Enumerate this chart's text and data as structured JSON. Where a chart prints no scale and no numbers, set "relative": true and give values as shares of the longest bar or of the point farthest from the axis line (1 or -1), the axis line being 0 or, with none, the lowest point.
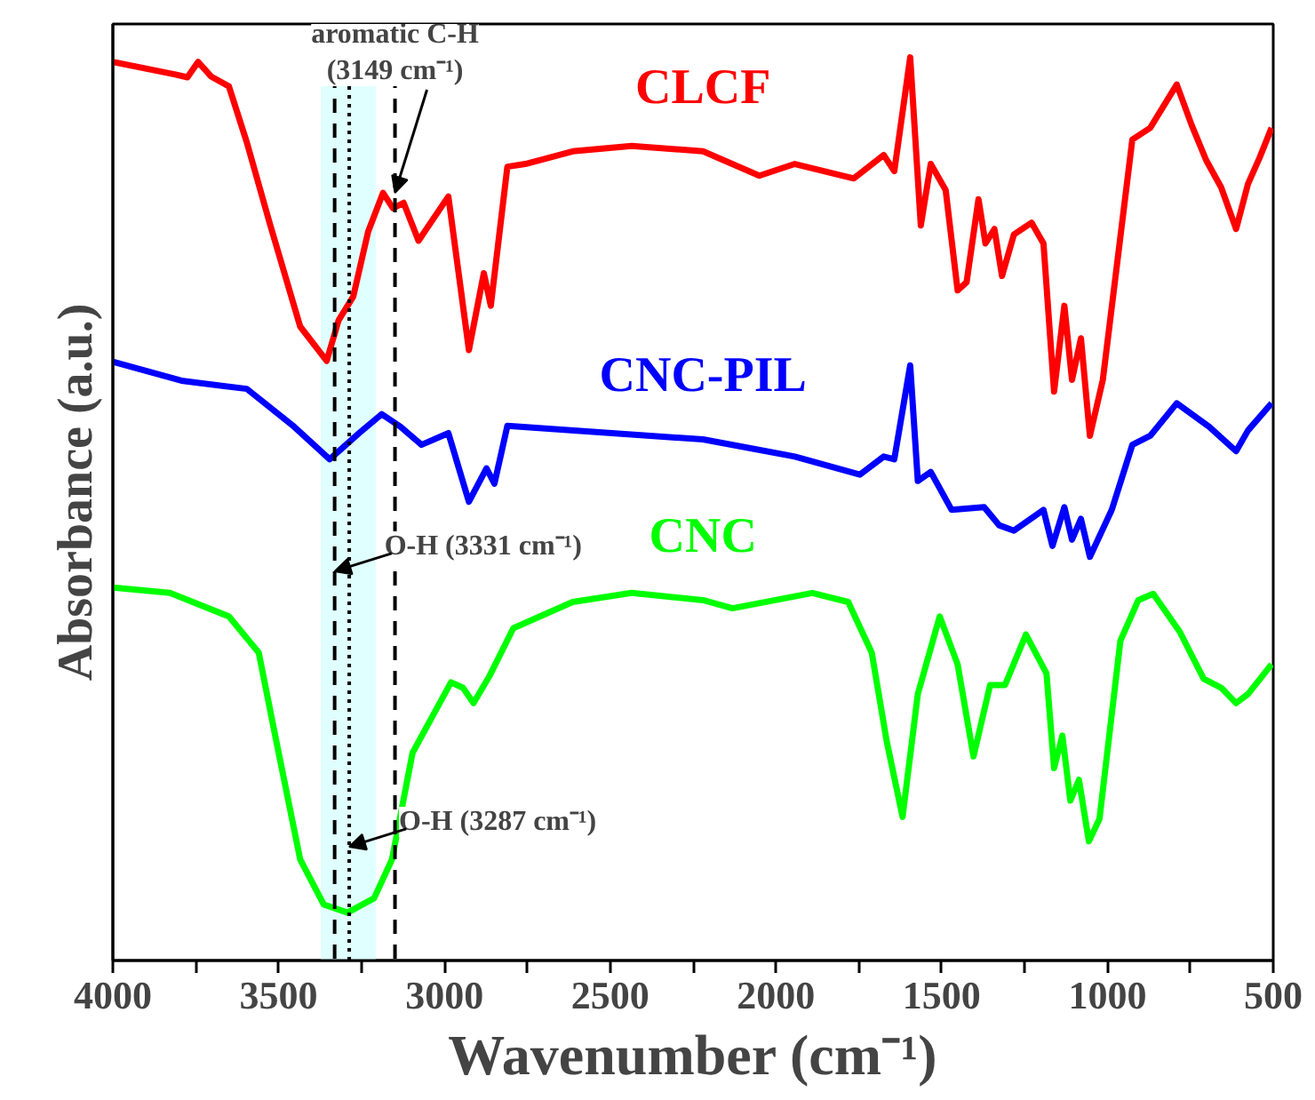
{
  "chart_data": {
    "type": "line",
    "relative": true,
    "xlabel": "Wavenumber (cm⁻¹)",
    "ylabel": "Absorbance (a.u.)",
    "xlim": [
      4000,
      500
    ],
    "xticks": [
      4000,
      {
        "value": 3750,
        "label": null
      },
      3500,
      {
        "value": 3250,
        "label": null
      },
      3000,
      {
        "value": 2750,
        "label": null
      },
      2500,
      {
        "value": 2250,
        "label": null
      },
      2000,
      {
        "value": 1750,
        "label": null
      },
      1500,
      {
        "value": 1250,
        "label": null
      },
      1000,
      {
        "value": 750,
        "label": null
      },
      500
    ],
    "grid": false,
    "marker": "none",
    "line_style": "solid",
    "series": [
      {
        "name": "CLCF",
        "color": "#ff0000",
        "x": [
          4000,
          3811,
          3775,
          3743,
          3704,
          3650,
          3596,
          3525,
          3435,
          3355,
          3319,
          3275,
          3230,
          3185,
          3155,
          3123,
          3078,
          2988,
          2926,
          2881,
          2860,
          2810,
          2756,
          2613,
          2435,
          2220,
          2050,
          1943,
          1765,
          1675,
          1643,
          1595,
          1563,
          1533,
          1488,
          1452,
          1425,
          1389,
          1368,
          1341,
          1318,
          1282,
          1229,
          1193,
          1161,
          1130,
          1107,
          1080,
          1053,
          1014,
          925,
          871,
          791,
          746,
          702,
          657,
          612,
          576,
          541,
          505
        ],
        "values": [
          0.995,
          0.981,
          0.978,
          0.995,
          0.979,
          0.968,
          0.906,
          0.814,
          0.702,
          0.664,
          0.709,
          0.735,
          0.807,
          0.85,
          0.833,
          0.839,
          0.797,
          0.846,
          0.676,
          0.761,
          0.725,
          0.879,
          0.882,
          0.896,
          0.902,
          0.896,
          0.869,
          0.882,
          0.866,
          0.892,
          0.874,
          1.0,
          0.814,
          0.882,
          0.853,
          0.742,
          0.751,
          0.843,
          0.794,
          0.81,
          0.758,
          0.804,
          0.817,
          0.794,
          0.63,
          0.725,
          0.643,
          0.689,
          0.581,
          0.643,
          0.909,
          0.922,
          0.97,
          0.925,
          0.886,
          0.856,
          0.81,
          0.86,
          0.889,
          0.922
        ]
      },
      {
        "name": "CNC-PIL",
        "color": "#0000ff",
        "x": [
          4000,
          3793,
          3596,
          3453,
          3346,
          3257,
          3189,
          3132,
          3069,
          2988,
          2926,
          2873,
          2849,
          2810,
          2220,
          1943,
          1747,
          1675,
          1643,
          1595,
          1572,
          1533,
          1470,
          1372,
          1327,
          1282,
          1193,
          1166,
          1130,
          1107,
          1080,
          1053,
          987,
          925,
          871,
          791,
          693,
          612,
          576,
          505
        ],
        "values": [
          0.663,
          0.642,
          0.633,
          0.591,
          0.555,
          0.584,
          0.605,
          0.591,
          0.571,
          0.584,
          0.508,
          0.545,
          0.528,
          0.592,
          0.577,
          0.558,
          0.538,
          0.558,
          0.555,
          0.659,
          0.531,
          0.541,
          0.499,
          0.502,
          0.482,
          0.476,
          0.499,
          0.459,
          0.502,
          0.466,
          0.489,
          0.447,
          0.499,
          0.571,
          0.581,
          0.617,
          0.591,
          0.564,
          0.587,
          0.617
        ]
      },
      {
        "name": "CNC",
        "color": "#00ff00",
        "x": [
          4000,
          3828,
          3650,
          3560,
          3507,
          3435,
          3364,
          3292,
          3212,
          3158,
          3096,
          2980,
          2944,
          2912,
          2864,
          2792,
          2613,
          2435,
          2220,
          2131,
          1890,
          1782,
          1711,
          1666,
          1618,
          1572,
          1506,
          1452,
          1404,
          1354,
          1309,
          1246,
          1184,
          1161,
          1136,
          1112,
          1086,
          1056,
          1024,
          961,
          907,
          862,
          782,
          710,
          657,
          612,
          576,
          505
        ],
        "values": [
          0.413,
          0.407,
          0.381,
          0.341,
          0.243,
          0.112,
          0.062,
          0.053,
          0.069,
          0.112,
          0.23,
          0.308,
          0.302,
          0.285,
          0.315,
          0.368,
          0.397,
          0.407,
          0.399,
          0.39,
          0.407,
          0.397,
          0.341,
          0.243,
          0.159,
          0.295,
          0.381,
          0.328,
          0.226,
          0.305,
          0.305,
          0.361,
          0.318,
          0.213,
          0.249,
          0.177,
          0.2,
          0.132,
          0.157,
          0.354,
          0.399,
          0.406,
          0.364,
          0.312,
          0.302,
          0.285,
          0.295,
          0.328
        ]
      }
    ],
    "ref_lines": [
      {
        "axis": "x",
        "value": 3331,
        "color": "#000000",
        "line_style": "dashed"
      },
      {
        "axis": "x",
        "value": 3149,
        "color": "#000000",
        "line_style": "dashed"
      },
      {
        "axis": "x",
        "value": 3287,
        "color": "#000000",
        "line_style": "dotted"
      }
    ],
    "bands": [
      {
        "axis": "x",
        "from": 3373,
        "to": 3207,
        "color": "#e0ffff"
      }
    ],
    "annotations": [
      {
        "text": "aromatic C-H\n(3149 cm⁻¹)",
        "x": 3149,
        "y": 0.85
      },
      {
        "text": "O-H (3331 cm⁻¹)",
        "x": 3331,
        "y": 0.431
      },
      {
        "text": "O-H (3287 cm⁻¹)",
        "x": 3287,
        "y": 0.126
      }
    ]
  }
}
